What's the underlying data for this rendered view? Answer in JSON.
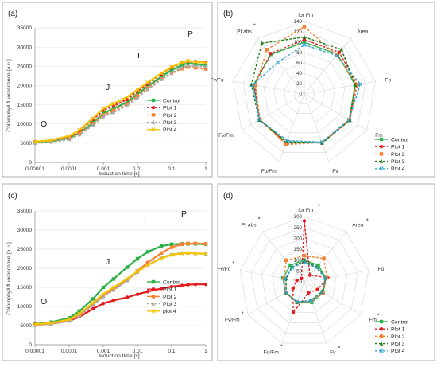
{
  "colors": {
    "Control": "#2bb04a",
    "Plot 1": "#e41a1c",
    "Plot 2": "#f58231",
    "Plot 3": "#1f7a1f",
    "Plot 4": "#2fa3d8",
    "grey_curve": "#a9a9a9",
    "yellow_curve": "#f5c400"
  },
  "chart_data": [
    {
      "panel": "(a)",
      "type": "line",
      "xlabel": "Induction time [s]",
      "ylabel": "Chlorophyll fluorescence [a.u.]",
      "x_scale": "log",
      "xlim": [
        1e-05,
        1
      ],
      "ylim": [
        0,
        35000
      ],
      "x_ticks": [
        "0.00001",
        "0.0001",
        "0.001",
        "0.01",
        "0.1",
        "1"
      ],
      "y_ticks": [
        "0",
        "5000",
        "10000",
        "15000",
        "20000",
        "25000",
        "30000",
        "35000"
      ],
      "phase_labels": [
        "O",
        "J",
        "I",
        "P"
      ],
      "legend_position": "bottom-right",
      "x": [
        1e-05,
        3e-05,
        0.0001,
        0.0002,
        0.0005,
        0.001,
        0.002,
        0.005,
        0.01,
        0.02,
        0.05,
        0.1,
        0.2,
        0.3,
        0.5,
        1
      ],
      "series": [
        {
          "name": "Control",
          "marker": "square",
          "dash": "solid",
          "color_key": "Control",
          "values": [
            5200,
            5500,
            6300,
            7600,
            10300,
            12800,
            14000,
            15700,
            17800,
            19800,
            22300,
            24000,
            25300,
            25800,
            25600,
            25300
          ]
        },
        {
          "name": "Plot 1",
          "marker": "circle",
          "dash": "dashed",
          "color_key": "Plot 1",
          "values": [
            5300,
            5700,
            6700,
            8200,
            11200,
            13600,
            14700,
            16400,
            18500,
            20500,
            23000,
            24700,
            25900,
            26300,
            26200,
            26000
          ]
        },
        {
          "name": "Plot 2",
          "marker": "square",
          "dash": "dashed",
          "color_key": "Plot 2",
          "values": [
            5100,
            5400,
            6200,
            7400,
            10000,
            12300,
            13500,
            15200,
            17300,
            19300,
            21700,
            23200,
            24400,
            24800,
            24600,
            24300
          ]
        },
        {
          "name": "Plot 3",
          "marker": "triangle",
          "dash": "dashed",
          "color_key": "grey_curve",
          "values": [
            5000,
            5300,
            6000,
            7200,
            9700,
            11900,
            13000,
            14800,
            16900,
            19000,
            21600,
            23300,
            24700,
            25200,
            25100,
            24900
          ]
        },
        {
          "name": "Plot 4",
          "marker": "x",
          "dash": "solid",
          "color_key": "yellow_curve",
          "values": [
            5400,
            5800,
            6900,
            8400,
            11500,
            14000,
            15300,
            17000,
            18900,
            20800,
            23200,
            24800,
            26000,
            26400,
            26200,
            25900
          ]
        }
      ]
    },
    {
      "panel": "(b)",
      "type": "radar",
      "axes": [
        "t for Fm",
        "Area",
        "Fo",
        "Fm",
        "Fv",
        "Fo/Fm",
        "Fv/Fm",
        "Fv/Fo",
        "PI abs"
      ],
      "starred_axes": [
        "PI abs"
      ],
      "r_ticks": [
        "0",
        "20",
        "40",
        "60",
        "80",
        "100",
        "120",
        "140"
      ],
      "rlim": [
        0,
        140
      ],
      "legend_position": "bottom-right",
      "series": [
        {
          "name": "Control",
          "marker": "square",
          "dash": "solid",
          "color_key": "Control",
          "values": [
            100,
            100,
            100,
            100,
            100,
            100,
            100,
            100,
            100
          ]
        },
        {
          "name": "Plot 1",
          "marker": "circle",
          "dash": "dashed",
          "color_key": "Plot 1",
          "values": [
            105,
            105,
            104,
            101,
            100,
            102,
            100,
            98,
            102
          ]
        },
        {
          "name": "Plot 2",
          "marker": "square",
          "dash": "dashed",
          "color_key": "Plot 2",
          "values": [
            130,
            98,
            103,
            100,
            100,
            104,
            99,
            96,
            112
          ]
        },
        {
          "name": "Plot 3",
          "marker": "triangle",
          "dash": "dashed",
          "color_key": "Plot 3",
          "values": [
            110,
            112,
            100,
            102,
            101,
            98,
            101,
            104,
            128
          ]
        },
        {
          "name": "Plot 4",
          "marker": "x",
          "dash": "dashed",
          "color_key": "Plot 4",
          "values": [
            95,
            97,
            110,
            100,
            99,
            96,
            100,
            101,
            80
          ]
        }
      ]
    },
    {
      "panel": "(c)",
      "type": "line",
      "xlabel": "Induction time [s]",
      "ylabel": "Chlorophyll fluorescence [a.u.]",
      "x_scale": "log",
      "xlim": [
        1e-05,
        1
      ],
      "ylim": [
        0,
        35000
      ],
      "x_ticks": [
        "0.00001",
        "0.0001",
        "0.001",
        "0.01",
        "0.1",
        "1"
      ],
      "y_ticks": [
        "0",
        "5000",
        "10000",
        "15000",
        "20000",
        "25000",
        "30000",
        "35000"
      ],
      "phase_labels": [
        "O",
        "J",
        "I",
        "P"
      ],
      "legend_position": "bottom-right",
      "x": [
        1e-05,
        3e-05,
        0.0001,
        0.0002,
        0.0005,
        0.001,
        0.002,
        0.005,
        0.01,
        0.02,
        0.05,
        0.1,
        0.2,
        0.3,
        0.5,
        1
      ],
      "series": [
        {
          "name": "Control",
          "marker": "square",
          "dash": "solid",
          "color_key": "Control",
          "values": [
            5400,
            5900,
            7000,
            8800,
            12000,
            15000,
            17200,
            20300,
            22500,
            24300,
            25800,
            26300,
            26400,
            26400,
            26400,
            26300
          ]
        },
        {
          "name": "Plot 1",
          "marker": "circle",
          "dash": "solid",
          "color_key": "Plot 1",
          "values": [
            5300,
            5600,
            6200,
            7300,
            9400,
            10800,
            11600,
            12400,
            13200,
            13900,
            14700,
            15200,
            15500,
            15700,
            15800,
            15800
          ]
        },
        {
          "name": "Plot 2",
          "marker": "square",
          "dash": "solid",
          "color_key": "Plot 2",
          "values": [
            5200,
            5500,
            6400,
            7800,
            10600,
            12900,
            14500,
            17000,
            19300,
            21500,
            24000,
            25500,
            26300,
            26500,
            26500,
            26400
          ]
        },
        {
          "name": "Plot 3",
          "marker": "triangle",
          "dash": "dashed",
          "color_key": "grey_curve",
          "values": [
            5100,
            5400,
            6200,
            7600,
            10400,
            12600,
            14300,
            16800,
            19000,
            20900,
            22800,
            23600,
            24000,
            24000,
            23900,
            23800
          ]
        },
        {
          "name": "plot 4",
          "marker": "x",
          "dash": "solid",
          "color_key": "yellow_curve",
          "values": [
            5300,
            5700,
            6600,
            8100,
            11000,
            13300,
            15000,
            17300,
            19200,
            20800,
            22600,
            23500,
            23900,
            24000,
            23900,
            23800
          ]
        }
      ]
    },
    {
      "panel": "(d)",
      "type": "radar",
      "axes": [
        "t for Fm",
        "Area",
        "Fo",
        "Fm",
        "Fv",
        "Fo/Fm",
        "Fv/Fm",
        "Fv/Fo",
        "PI abs"
      ],
      "starred_axes": [
        "t for Fm",
        "Area",
        "Fm",
        "Fv",
        "Fo/Fm",
        "Fv/Fm",
        "Fv/Fo",
        "PI abs"
      ],
      "r_ticks": [
        "0",
        "50",
        "100",
        "150",
        "200",
        "250",
        "300"
      ],
      "rlim": [
        0,
        300
      ],
      "legend_position": "bottom-right",
      "series": [
        {
          "name": "Control",
          "marker": "square",
          "dash": "solid",
          "color_key": "Control",
          "values": [
            100,
            100,
            100,
            100,
            100,
            100,
            100,
            100,
            100
          ]
        },
        {
          "name": "Plot 1",
          "marker": "circle",
          "dash": "dashed",
          "color_key": "Plot 1",
          "values": [
            280,
            40,
            110,
            70,
            55,
            150,
            60,
            35,
            20
          ]
        },
        {
          "name": "Plot 2",
          "marker": "square",
          "dash": "dashed",
          "color_key": "Plot 2",
          "values": [
            120,
            140,
            105,
            100,
            95,
            100,
            100,
            95,
            130
          ]
        },
        {
          "name": "Plot 3",
          "marker": "triangle",
          "dash": "dashed",
          "color_key": "Plot 3",
          "values": [
            95,
            90,
            100,
            92,
            90,
            100,
            96,
            85,
            90
          ]
        },
        {
          "name": "Plot 4",
          "marker": "x",
          "dash": "dashed",
          "color_key": "Plot 4",
          "values": [
            90,
            85,
            98,
            95,
            92,
            98,
            97,
            90,
            85
          ]
        }
      ]
    }
  ]
}
